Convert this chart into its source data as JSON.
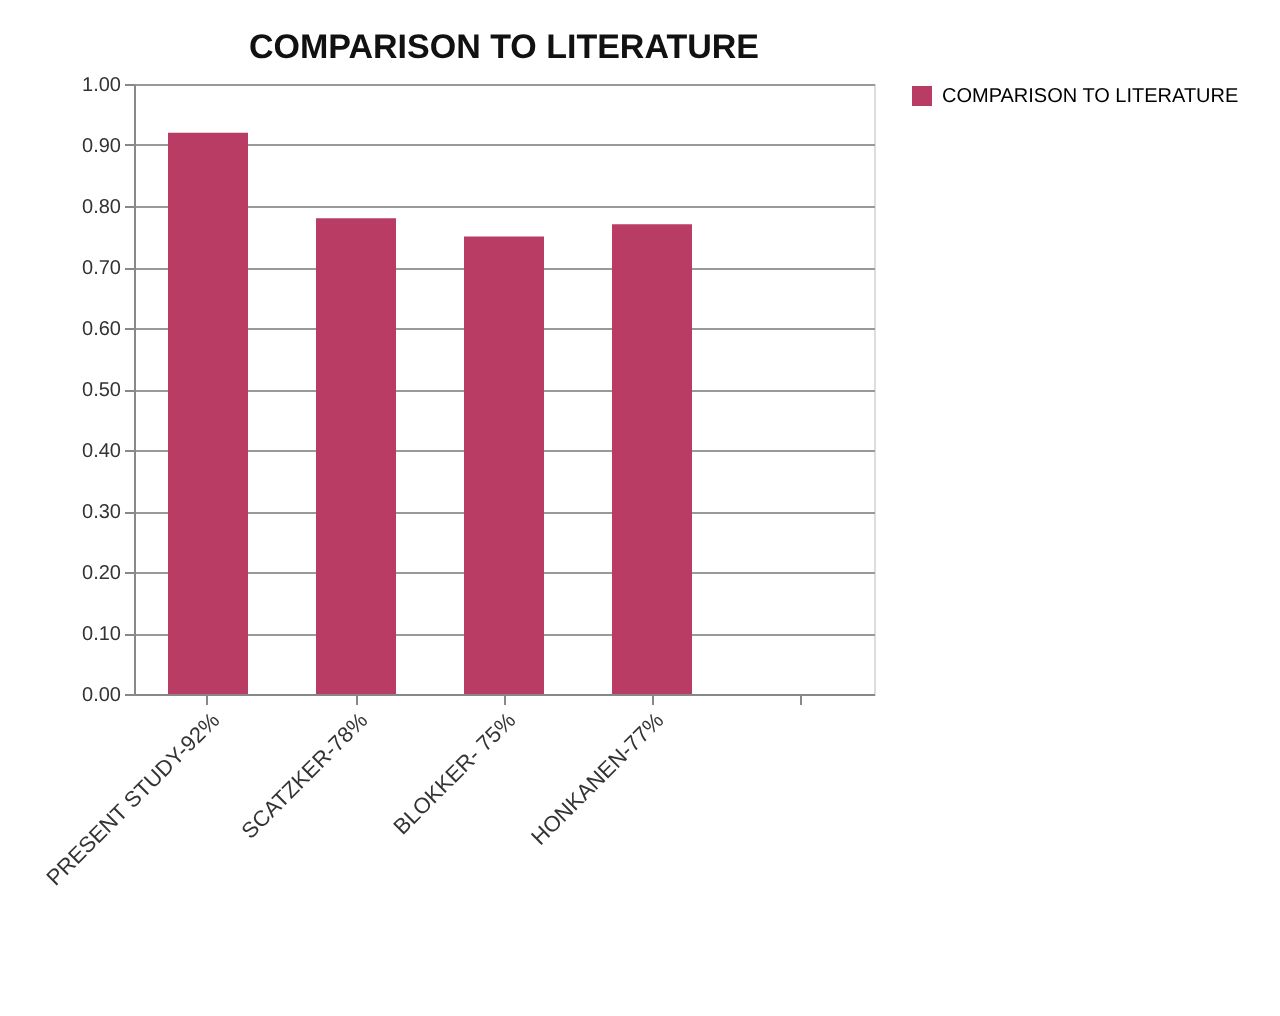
{
  "chart_data": {
    "type": "bar",
    "title": "COMPARISON TO LITERATURE",
    "categories": [
      "PRESENT STUDY-92%",
      "SCATZKER-78%",
      "BLOKKER- 75%",
      "HONKANEN-77%",
      null
    ],
    "series": [
      {
        "name": "COMPARISON TO LITERATURE",
        "color": "#b83c64",
        "values": [
          0.92,
          0.78,
          0.75,
          0.77,
          null
        ]
      }
    ],
    "ylim": [
      0,
      1
    ],
    "yticks": [
      {
        "value": 0,
        "label": "0.00"
      },
      {
        "value": 0.1,
        "label": "0.10"
      },
      {
        "value": 0.2,
        "label": "0.20"
      },
      {
        "value": 0.3,
        "label": "0.30"
      },
      {
        "value": 0.4,
        "label": "0.40"
      },
      {
        "value": 0.5,
        "label": "0.50"
      },
      {
        "value": 0.6,
        "label": "0.60"
      },
      {
        "value": 0.7,
        "label": "0.70"
      },
      {
        "value": 0.8,
        "label": "0.80"
      },
      {
        "value": 0.9,
        "label": "0.90"
      },
      {
        "value": 1,
        "label": "1.00"
      }
    ],
    "grid": "y",
    "legend": "right"
  }
}
